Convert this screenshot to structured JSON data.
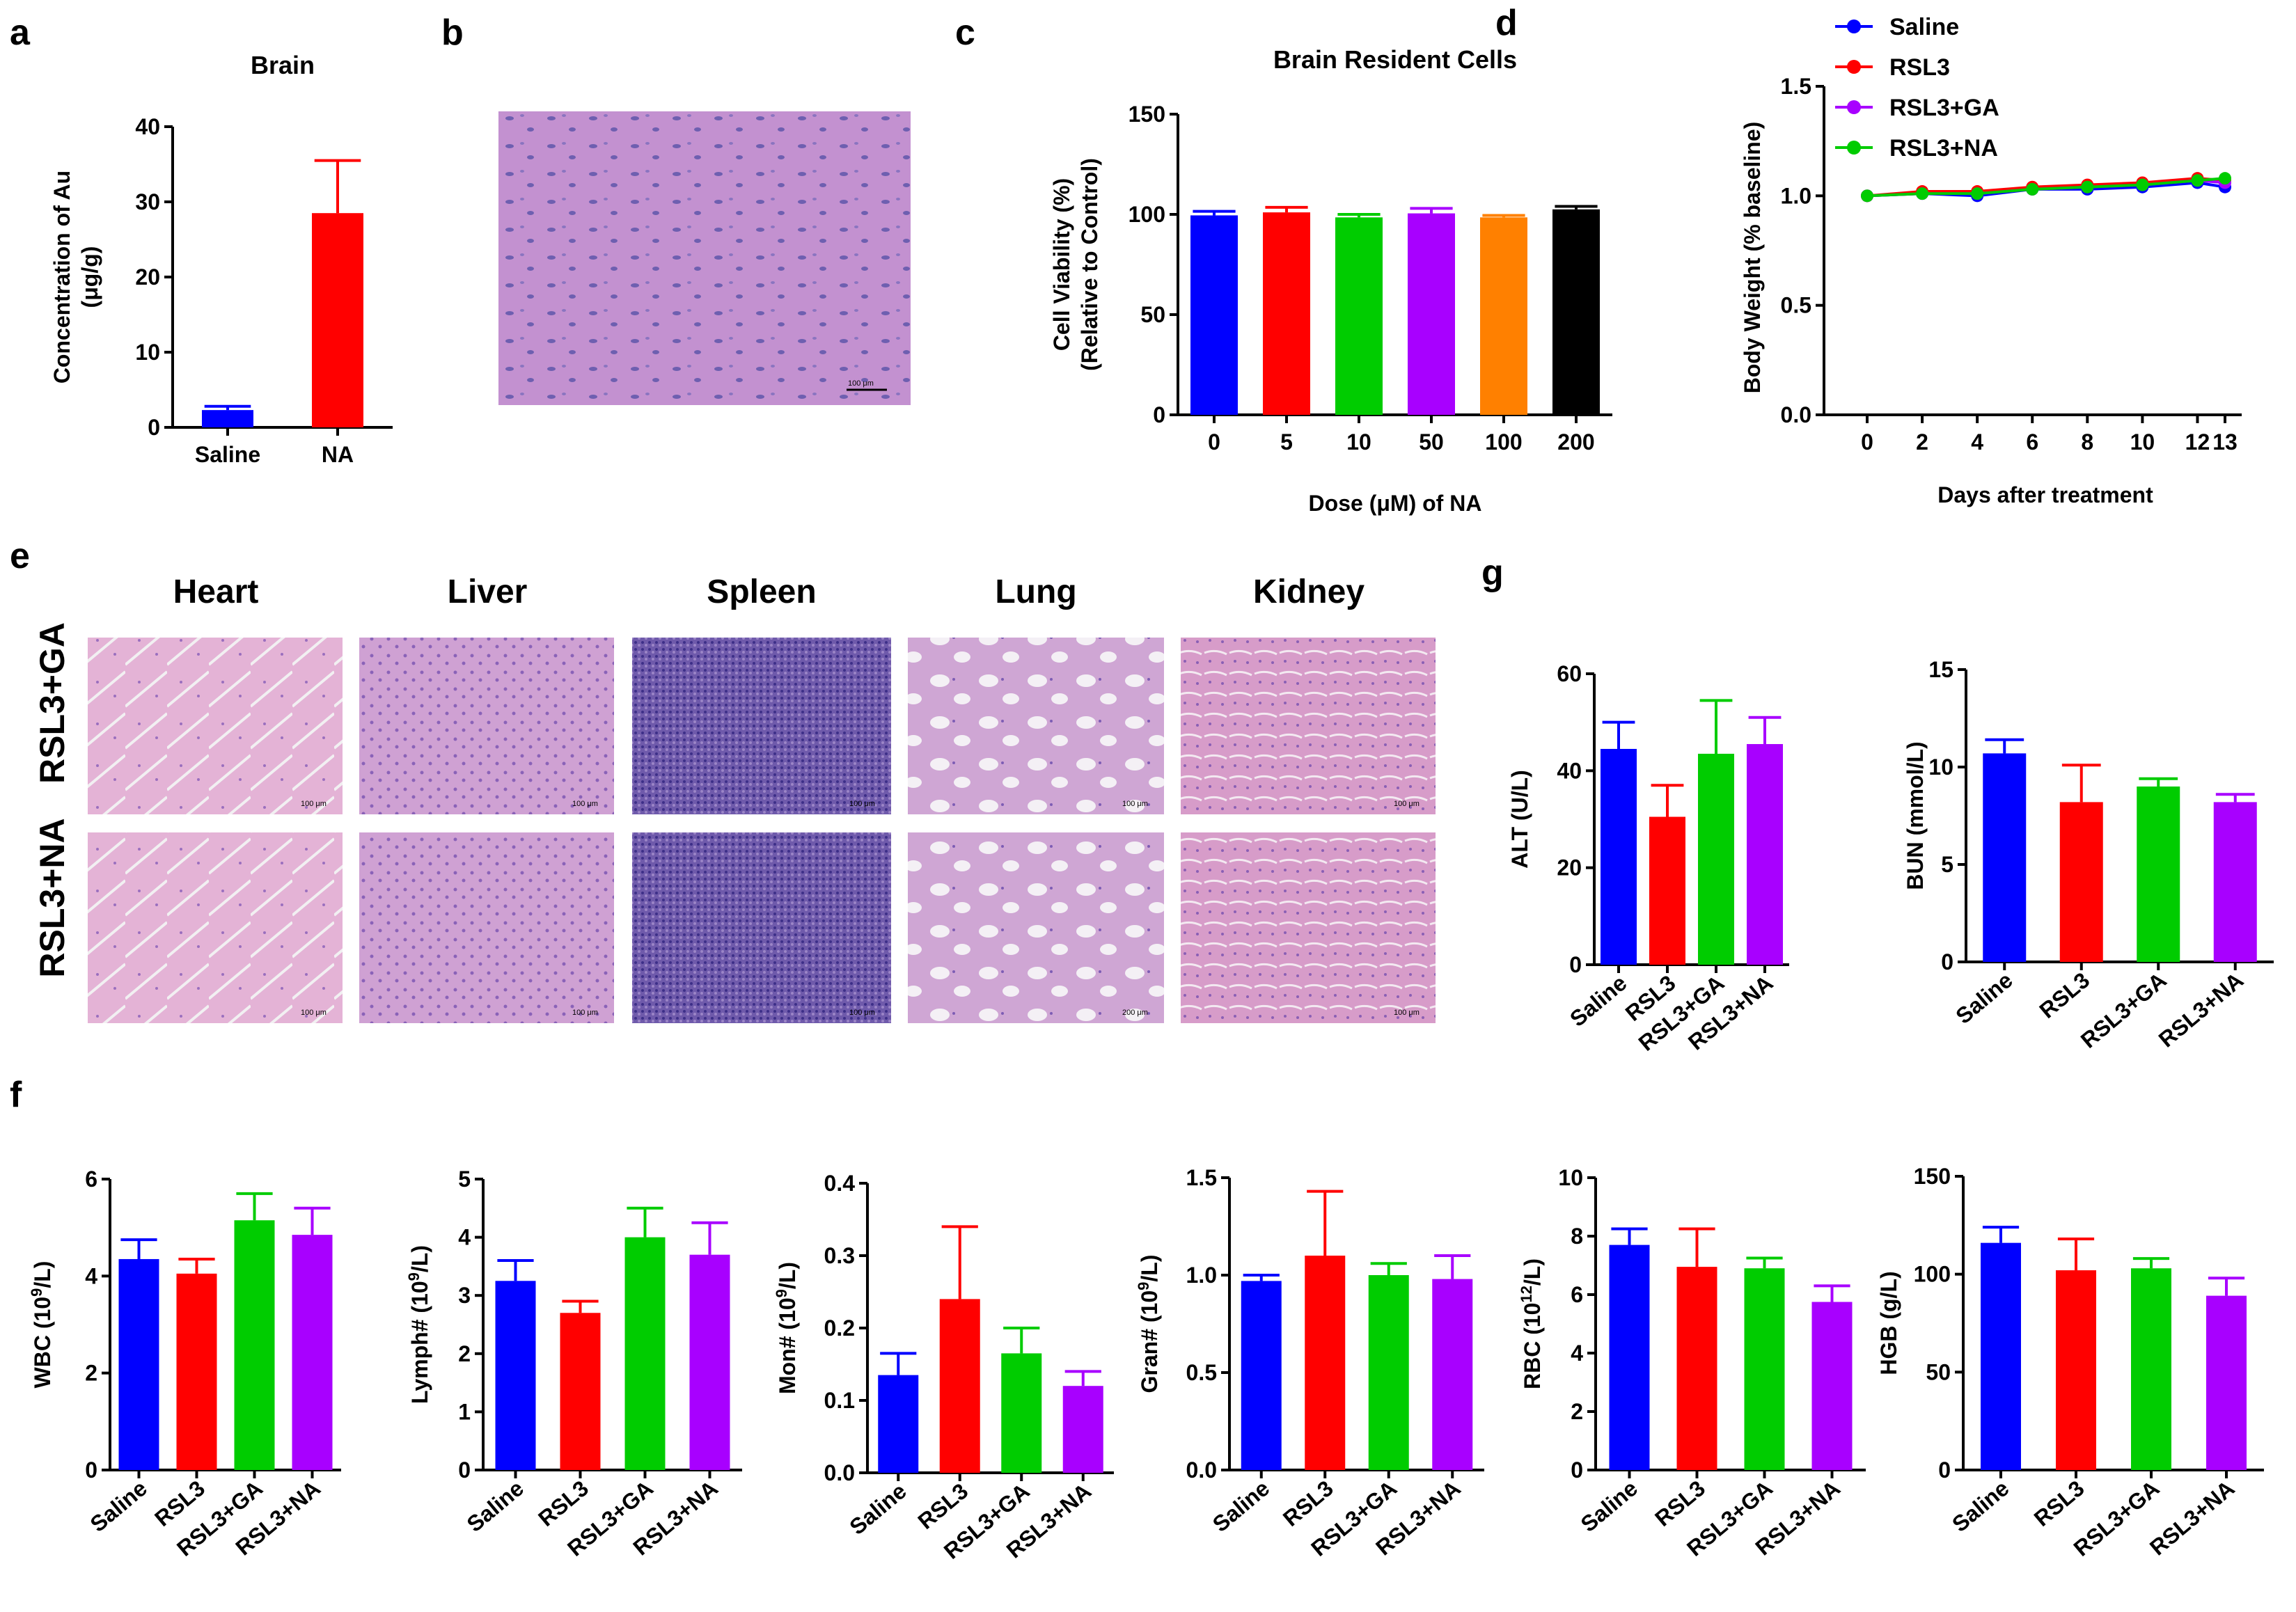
{
  "colors": {
    "blue": "#0000ff",
    "red": "#ff0000",
    "green": "#00cc00",
    "purple": "#a800ff",
    "orange": "#ff8000",
    "black": "#000000",
    "he_pink": "#d9a6d3",
    "he_purple": "#b68ad3"
  },
  "panels": {
    "a": "a",
    "b": "b",
    "c": "c",
    "d": "d",
    "e": "e",
    "f": "f",
    "g": "g"
  },
  "micrograph_b": {
    "scale_bar": "100 μm"
  },
  "histology_e": {
    "columns": [
      "Heart",
      "Liver",
      "Spleen",
      "Lung",
      "Kidney"
    ],
    "rows": [
      "RSL3+GA",
      "RSL3+NA"
    ],
    "scale_bars": [
      [
        "100 μm",
        "100 μm",
        "100 μm",
        "100 μm",
        "100 μm"
      ],
      [
        "100 μm",
        "100 μm",
        "100 μm",
        "200 μm",
        "100 μm"
      ]
    ]
  },
  "chart_data": [
    {
      "id": "a",
      "type": "bar",
      "title": "Brain",
      "ylabel": [
        "Concentration of Au",
        "(μg/g)"
      ],
      "xlabel": "",
      "categories": [
        "Saline",
        "NA"
      ],
      "values": [
        2.3,
        28.5
      ],
      "errors": [
        0.5,
        7.0
      ],
      "ylim": [
        0,
        40
      ],
      "yticks": [
        "0",
        "10",
        "20",
        "30",
        "40"
      ],
      "colors": [
        "#0000ff",
        "#ff0000"
      ]
    },
    {
      "id": "c",
      "type": "bar",
      "title": "Brain Resident Cells",
      "ylabel": [
        "Cell Viability (%)",
        "(Relative to Control)"
      ],
      "xlabel": "Dose (μM) of NA",
      "categories": [
        "0",
        "5",
        "10",
        "50",
        "100",
        "200"
      ],
      "values": [
        99.5,
        101,
        98.5,
        100.5,
        98.5,
        102.5
      ],
      "errors": [
        2,
        2.5,
        1.5,
        2.5,
        1,
        1.5
      ],
      "ylim": [
        0,
        150
      ],
      "yticks": [
        "0",
        "50",
        "100",
        "150"
      ],
      "colors": [
        "#0000ff",
        "#ff0000",
        "#00cc00",
        "#a800ff",
        "#ff8000",
        "#000000"
      ]
    },
    {
      "id": "d",
      "type": "line",
      "title": "",
      "ylabel": "Body Weight (% baseline)",
      "xlabel": "Days after treatment",
      "x": [
        0,
        2,
        4,
        6,
        8,
        10,
        12,
        13
      ],
      "xticks": [
        "0",
        "2",
        "4",
        "6",
        "8",
        "10",
        "12",
        "13"
      ],
      "ylim": [
        0,
        1.5
      ],
      "yticks": [
        "0.0",
        "0.5",
        "1.0",
        "1.5"
      ],
      "legend": "top-left",
      "series": [
        {
          "name": "Saline",
          "color": "#0000ff",
          "values": [
            1.0,
            1.01,
            1.0,
            1.03,
            1.03,
            1.04,
            1.06,
            1.04
          ]
        },
        {
          "name": "RSL3",
          "color": "#ff0000",
          "values": [
            1.0,
            1.02,
            1.02,
            1.04,
            1.05,
            1.06,
            1.08,
            1.07
          ]
        },
        {
          "name": "RSL3+GA",
          "color": "#a800ff",
          "values": [
            1.0,
            1.01,
            1.01,
            1.03,
            1.04,
            1.05,
            1.07,
            1.06
          ]
        },
        {
          "name": "RSL3+NA",
          "color": "#00cc00",
          "values": [
            1.0,
            1.01,
            1.01,
            1.03,
            1.04,
            1.05,
            1.07,
            1.08
          ]
        }
      ]
    },
    {
      "id": "g1",
      "type": "bar",
      "title": "",
      "ylabel": "ALT (U/L)",
      "xlabel": "",
      "categories": [
        "Saline",
        "RSL3",
        "RSL3+GA",
        "RSL3+NA"
      ],
      "values": [
        44.5,
        30.5,
        43.5,
        45.5
      ],
      "errors": [
        5.5,
        6.5,
        11,
        5.5
      ],
      "ylim": [
        0,
        60
      ],
      "yticks": [
        "0",
        "20",
        "40",
        "60"
      ],
      "colors": [
        "#0000ff",
        "#ff0000",
        "#00cc00",
        "#a800ff"
      ]
    },
    {
      "id": "g2",
      "type": "bar",
      "title": "",
      "ylabel": "BUN (mmol/L)",
      "xlabel": "",
      "categories": [
        "Saline",
        "RSL3",
        "RSL3+GA",
        "RSL3+NA"
      ],
      "values": [
        10.7,
        8.2,
        9.0,
        8.2
      ],
      "errors": [
        0.7,
        1.9,
        0.4,
        0.4
      ],
      "ylim": [
        0,
        15
      ],
      "yticks": [
        "0",
        "5",
        "10",
        "15"
      ],
      "colors": [
        "#0000ff",
        "#ff0000",
        "#00cc00",
        "#a800ff"
      ]
    },
    {
      "id": "f1",
      "type": "bar",
      "title": "",
      "ylabel": "WBC (10^9/L)",
      "xlabel": "",
      "categories": [
        "Saline",
        "RSL3",
        "RSL3+GA",
        "RSL3+NA"
      ],
      "values": [
        4.35,
        4.05,
        5.15,
        4.85
      ],
      "errors": [
        0.4,
        0.3,
        0.55,
        0.55
      ],
      "ylim": [
        0,
        6
      ],
      "yticks": [
        "0",
        "2",
        "4",
        "6"
      ],
      "colors": [
        "#0000ff",
        "#ff0000",
        "#00cc00",
        "#a800ff"
      ]
    },
    {
      "id": "f2",
      "type": "bar",
      "title": "",
      "ylabel": "Lymph# (10^9/L)",
      "xlabel": "",
      "categories": [
        "Saline",
        "RSL3",
        "RSL3+GA",
        "RSL3+NA"
      ],
      "values": [
        3.25,
        2.7,
        4.0,
        3.7
      ],
      "errors": [
        0.35,
        0.2,
        0.5,
        0.55
      ],
      "ylim": [
        0,
        5
      ],
      "yticks": [
        "0",
        "1",
        "2",
        "3",
        "4",
        "5"
      ],
      "colors": [
        "#0000ff",
        "#ff0000",
        "#00cc00",
        "#a800ff"
      ]
    },
    {
      "id": "f3",
      "type": "bar",
      "title": "",
      "ylabel": "Mon# (10^9/L)",
      "xlabel": "",
      "categories": [
        "Saline",
        "RSL3",
        "RSL3+GA",
        "RSL3+NA"
      ],
      "values": [
        0.135,
        0.24,
        0.165,
        0.12
      ],
      "errors": [
        0.03,
        0.1,
        0.035,
        0.02
      ],
      "ylim": [
        0,
        0.4
      ],
      "yticks": [
        "0.0",
        "0.1",
        "0.2",
        "0.3",
        "0.4"
      ],
      "colors": [
        "#0000ff",
        "#ff0000",
        "#00cc00",
        "#a800ff"
      ]
    },
    {
      "id": "f4",
      "type": "bar",
      "title": "",
      "ylabel": "Gran# (10^9/L)",
      "xlabel": "",
      "categories": [
        "Saline",
        "RSL3",
        "RSL3+GA",
        "RSL3+NA"
      ],
      "values": [
        0.97,
        1.1,
        1.0,
        0.98
      ],
      "errors": [
        0.03,
        0.33,
        0.06,
        0.12
      ],
      "ylim": [
        0,
        1.5
      ],
      "yticks": [
        "0.0",
        "0.5",
        "1.0",
        "1.5"
      ],
      "colors": [
        "#0000ff",
        "#ff0000",
        "#00cc00",
        "#a800ff"
      ]
    },
    {
      "id": "f5",
      "type": "bar",
      "title": "",
      "ylabel": "RBC (10^12/L)",
      "xlabel": "",
      "categories": [
        "Saline",
        "RSL3",
        "RSL3+GA",
        "RSL3+NA"
      ],
      "values": [
        7.7,
        6.95,
        6.9,
        5.75
      ],
      "errors": [
        0.55,
        1.3,
        0.35,
        0.55
      ],
      "ylim": [
        0,
        10
      ],
      "yticks": [
        "0",
        "2",
        "4",
        "6",
        "8",
        "10"
      ],
      "colors": [
        "#0000ff",
        "#ff0000",
        "#00cc00",
        "#a800ff"
      ]
    },
    {
      "id": "f6",
      "type": "bar",
      "title": "",
      "ylabel": "HGB (g/L)",
      "xlabel": "",
      "categories": [
        "Saline",
        "RSL3",
        "RSL3+GA",
        "RSL3+NA"
      ],
      "values": [
        116,
        102,
        103,
        89
      ],
      "errors": [
        8,
        16,
        5,
        9
      ],
      "ylim": [
        0,
        150
      ],
      "yticks": [
        "0",
        "50",
        "100",
        "150"
      ],
      "colors": [
        "#0000ff",
        "#ff0000",
        "#00cc00",
        "#a800ff"
      ]
    }
  ]
}
